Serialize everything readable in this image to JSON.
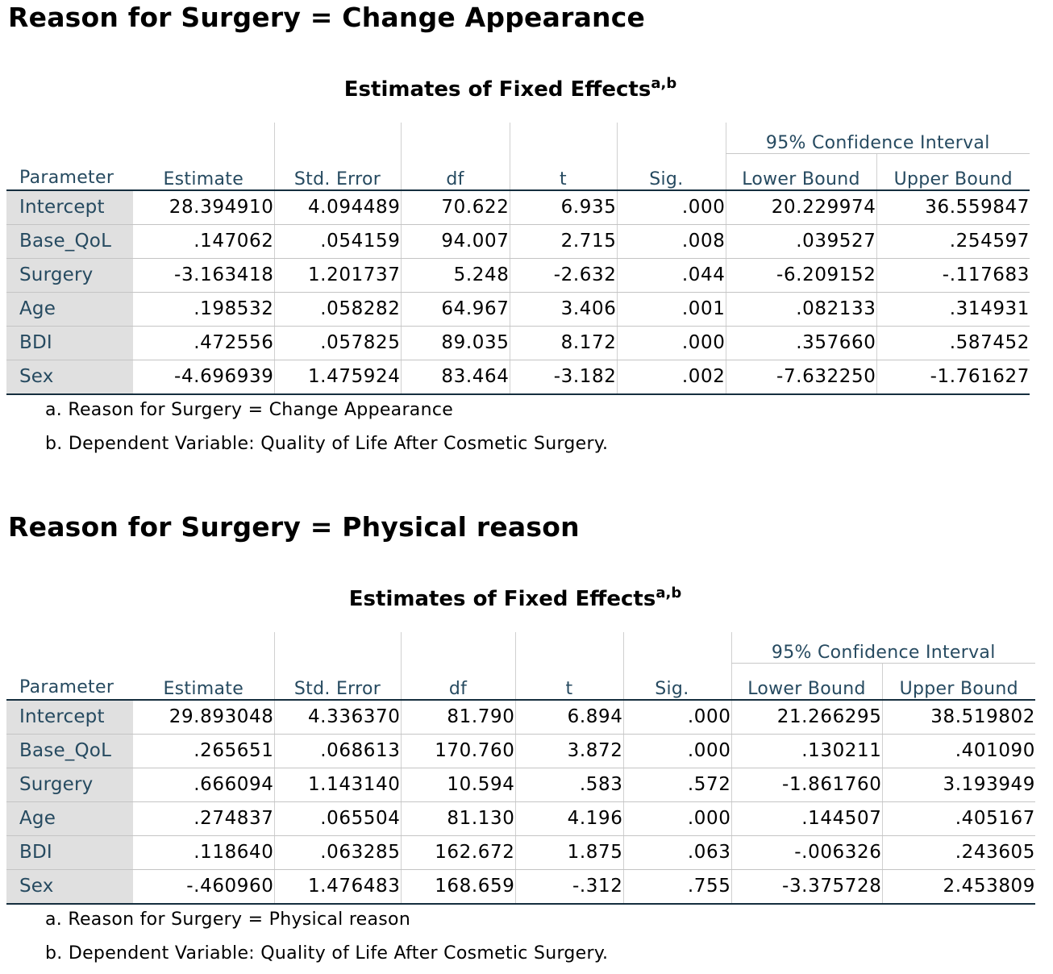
{
  "tables": [
    {
      "heading": "Reason for Surgery = Change Appearance",
      "caption": "Estimates of Fixed Effects",
      "caption_sup": "a,b",
      "columns": {
        "parameter": "Parameter",
        "estimate": "Estimate",
        "std_error": "Std. Error",
        "df": "df",
        "t": "t",
        "sig": "Sig.",
        "ci_group": "95% Confidence Interval",
        "lower": "Lower Bound",
        "upper": "Upper Bound"
      },
      "rows": [
        {
          "parameter": "Intercept",
          "estimate": "28.394910",
          "std_error": "4.094489",
          "df": "70.622",
          "t": "6.935",
          "sig": ".000",
          "lower": "20.229974",
          "upper": "36.559847"
        },
        {
          "parameter": "Base_QoL",
          "estimate": ".147062",
          "std_error": ".054159",
          "df": "94.007",
          "t": "2.715",
          "sig": ".008",
          "lower": ".039527",
          "upper": ".254597"
        },
        {
          "parameter": "Surgery",
          "estimate": "-3.163418",
          "std_error": "1.201737",
          "df": "5.248",
          "t": "-2.632",
          "sig": ".044",
          "lower": "-6.209152",
          "upper": "-.117683"
        },
        {
          "parameter": "Age",
          "estimate": ".198532",
          "std_error": ".058282",
          "df": "64.967",
          "t": "3.406",
          "sig": ".001",
          "lower": ".082133",
          "upper": ".314931"
        },
        {
          "parameter": "BDI",
          "estimate": ".472556",
          "std_error": ".057825",
          "df": "89.035",
          "t": "8.172",
          "sig": ".000",
          "lower": ".357660",
          "upper": ".587452"
        },
        {
          "parameter": "Sex",
          "estimate": "-4.696939",
          "std_error": "1.475924",
          "df": "83.464",
          "t": "-3.182",
          "sig": ".002",
          "lower": "-7.632250",
          "upper": "-1.761627"
        }
      ],
      "notes": [
        "a. Reason for Surgery = Change Appearance",
        "b. Dependent Variable: Quality of Life After Cosmetic Surgery."
      ]
    },
    {
      "heading": "Reason for Surgery = Physical reason",
      "caption": "Estimates of Fixed Effects",
      "caption_sup": "a,b",
      "columns": {
        "parameter": "Parameter",
        "estimate": "Estimate",
        "std_error": "Std. Error",
        "df": "df",
        "t": "t",
        "sig": "Sig.",
        "ci_group": "95% Confidence Interval",
        "lower": "Lower Bound",
        "upper": "Upper Bound"
      },
      "rows": [
        {
          "parameter": "Intercept",
          "estimate": "29.893048",
          "std_error": "4.336370",
          "df": "81.790",
          "t": "6.894",
          "sig": ".000",
          "lower": "21.266295",
          "upper": "38.519802"
        },
        {
          "parameter": "Base_QoL",
          "estimate": ".265651",
          "std_error": ".068613",
          "df": "170.760",
          "t": "3.872",
          "sig": ".000",
          "lower": ".130211",
          "upper": ".401090"
        },
        {
          "parameter": "Surgery",
          "estimate": ".666094",
          "std_error": "1.143140",
          "df": "10.594",
          "t": ".583",
          "sig": ".572",
          "lower": "-1.861760",
          "upper": "3.193949"
        },
        {
          "parameter": "Age",
          "estimate": ".274837",
          "std_error": ".065504",
          "df": "81.130",
          "t": "4.196",
          "sig": ".000",
          "lower": ".144507",
          "upper": ".405167"
        },
        {
          "parameter": "BDI",
          "estimate": ".118640",
          "std_error": ".063285",
          "df": "162.672",
          "t": "1.875",
          "sig": ".063",
          "lower": "-.006326",
          "upper": ".243605"
        },
        {
          "parameter": "Sex",
          "estimate": "-.460960",
          "std_error": "1.476483",
          "df": "168.659",
          "t": "-.312",
          "sig": ".755",
          "lower": "-3.375728",
          "upper": "2.453809"
        }
      ],
      "notes": [
        "a. Reason for Surgery = Physical reason",
        "b. Dependent Variable: Quality of Life After Cosmetic Surgery."
      ]
    }
  ]
}
